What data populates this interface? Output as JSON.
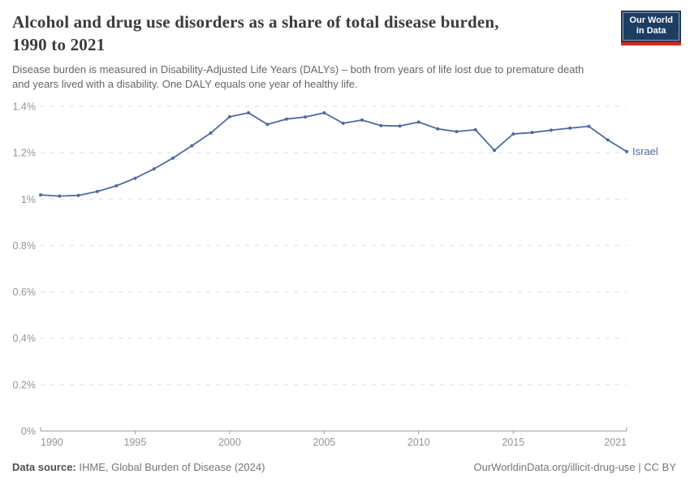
{
  "header": {
    "title_lines": [
      "Alcohol and drug use disorders as a share of total disease burden,",
      "1990 to 2021"
    ],
    "logo": {
      "line1": "Our World",
      "line2": "in Data"
    }
  },
  "subtitle_lines": [
    "Disease burden is measured in Disability-Adjusted Life Years (DALYs) – both from years of life lost due to premature death",
    "and years lived with a disability. One DALY equals one year of healthy life."
  ],
  "chart_data": {
    "type": "line",
    "title": "Alcohol and drug use disorders as a share of total disease burden, 1990 to 2021",
    "xlabel": "",
    "ylabel": "",
    "unit": "%",
    "x": [
      1990,
      1991,
      1992,
      1993,
      1994,
      1995,
      1996,
      1997,
      1998,
      1999,
      2000,
      2001,
      2002,
      2003,
      2004,
      2005,
      2006,
      2007,
      2008,
      2009,
      2010,
      2011,
      2012,
      2013,
      2014,
      2015,
      2016,
      2017,
      2018,
      2019,
      2020,
      2021
    ],
    "series": [
      {
        "name": "Israel",
        "color": "#4c6ba3",
        "values": [
          1.018,
          1.013,
          1.016,
          1.033,
          1.057,
          1.09,
          1.13,
          1.177,
          1.23,
          1.285,
          1.355,
          1.372,
          1.322,
          1.345,
          1.354,
          1.372,
          1.327,
          1.341,
          1.317,
          1.315,
          1.332,
          1.303,
          1.291,
          1.299,
          1.21,
          1.281,
          1.287,
          1.297,
          1.306,
          1.314,
          1.255,
          1.205
        ]
      }
    ],
    "ylim": [
      0,
      1.4
    ],
    "yticks": [
      0,
      0.2,
      0.4,
      0.6,
      0.8,
      1.0,
      1.2,
      1.4
    ],
    "ytick_labels": [
      "0%",
      "0.2%",
      "0.4%",
      "0.6%",
      "0.8%",
      "1%",
      "1.2%",
      "1.4%"
    ],
    "xtick_years": [
      1990,
      1995,
      2000,
      2005,
      2010,
      2015,
      2021
    ],
    "grid": "horizontal-dashed",
    "legend_position": "line-end-label",
    "markers": true
  },
  "footer": {
    "datasource_label": "Data source:",
    "datasource_value": " IHME, Global Burden of Disease (2024)",
    "url_text": "OurWorldinData.org/illicit-drug-use",
    "separator": " | ",
    "license_text": "CC BY"
  },
  "colors": {
    "title": "#3b3b3b",
    "subtitle": "#62666b",
    "footer": "#767676",
    "footer_label": "#4f4f4f",
    "logo_bg": "#1d3d63",
    "logo_accent": "#d4281e",
    "line": "#4c6ba3",
    "grid": "#dedede",
    "axis": "#9a9a9a",
    "tick_label": "#949494"
  }
}
